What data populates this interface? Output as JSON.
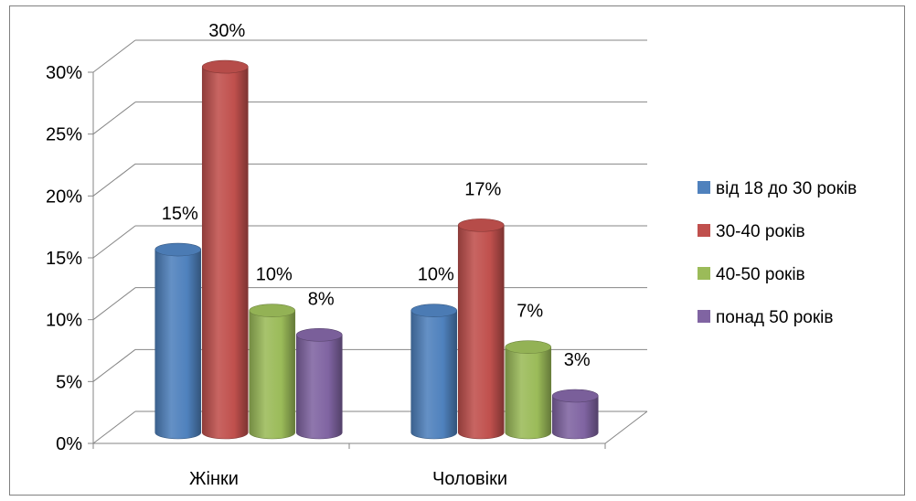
{
  "chart_data": {
    "type": "bar",
    "three_d": true,
    "categories": [
      "Жінки",
      "Чоловіки"
    ],
    "series": [
      {
        "name": "від 18 до 30 років",
        "color": "#4F81BD",
        "values": [
          15,
          10
        ],
        "labels": [
          "15%",
          "10%"
        ]
      },
      {
        "name": "30-40 років",
        "color": "#C0504D",
        "values": [
          30,
          17
        ],
        "labels": [
          "30%",
          "17%"
        ]
      },
      {
        "name": "40-50 років",
        "color": "#9BBB59",
        "values": [
          10,
          7
        ],
        "labels": [
          "10%",
          "7%"
        ]
      },
      {
        "name": "понад 50 років",
        "color": "#8064A2",
        "values": [
          8,
          3
        ],
        "labels": [
          "8%",
          "3%"
        ]
      }
    ],
    "ylim": [
      0,
      30
    ],
    "yticks": [
      0,
      5,
      10,
      15,
      20,
      25,
      30
    ],
    "ytick_labels": [
      "0%",
      "5%",
      "10%",
      "15%",
      "20%",
      "25%",
      "30%"
    ],
    "grid": true,
    "legend_position": "right"
  }
}
